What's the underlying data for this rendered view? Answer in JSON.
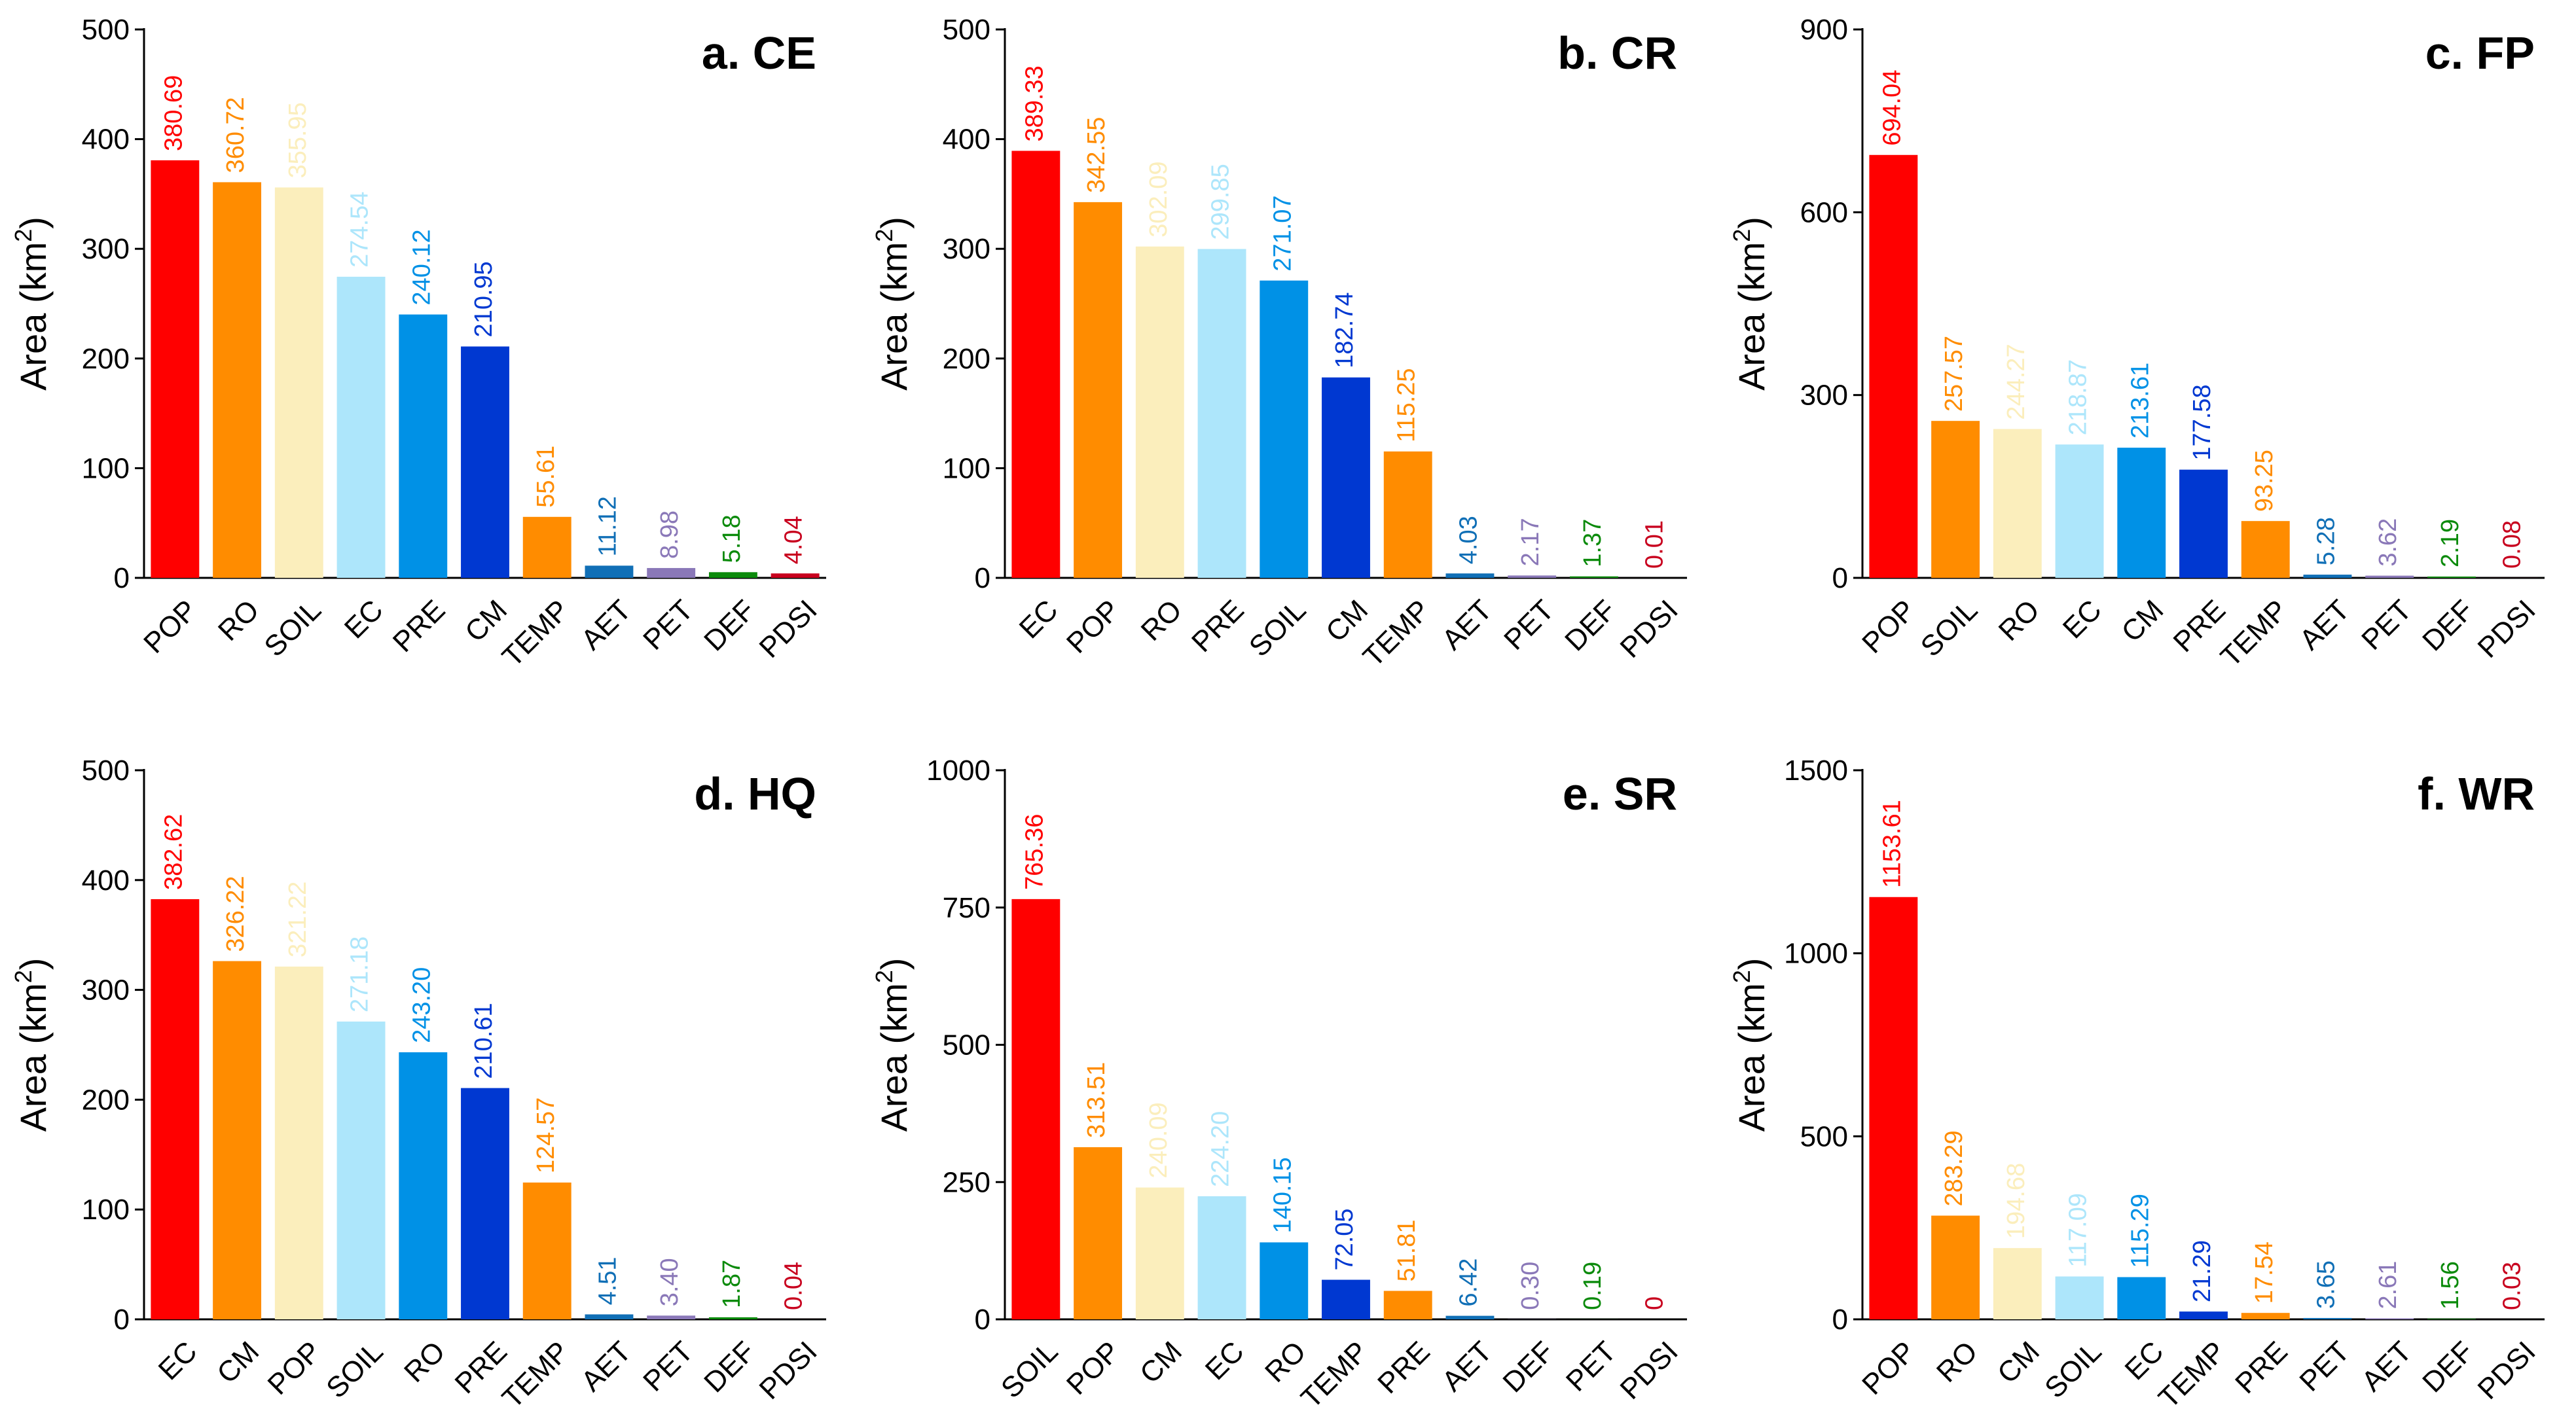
{
  "figure": {
    "background": "#ffffff"
  },
  "colors": {
    "red": "#ff0000",
    "orange": "#ff8c00",
    "pale_yellow": "#fbeebc",
    "light_blue": "#ade6fb",
    "blue": "#0091e6",
    "dark_blue": "#0038d1",
    "mid_blue": "#106fb6",
    "purple": "#8a78b8",
    "green": "#0b8a0b",
    "dark_red": "#c8001e"
  },
  "chart_data": [
    {
      "type": "bar",
      "title": "a. CE",
      "ylabel": "Area (km",
      "ylabel_sup": "2",
      "ylabel_close": ")",
      "ylim": [
        0,
        500
      ],
      "yticks": [
        0,
        100,
        200,
        300,
        400,
        500
      ],
      "ytick_labels": [
        "0",
        "100",
        "200",
        "300",
        "400",
        "500"
      ],
      "categories": [
        "POP",
        "RO",
        "SOIL",
        "EC",
        "PRE",
        "CM",
        "TEMP",
        "AET",
        "PET",
        "DEF",
        "PDSI"
      ],
      "values": [
        380.69,
        360.72,
        355.95,
        274.54,
        240.12,
        210.95,
        55.61,
        11.12,
        8.98,
        5.18,
        4.04
      ],
      "value_labels": [
        "380.69",
        "360.72",
        "355.95",
        "274.54",
        "240.12",
        "210.95",
        "55.61",
        "11.12",
        "8.98",
        "5.18",
        "4.04"
      ],
      "bar_colors": [
        "#ff0000",
        "#ff8c00",
        "#fbeebc",
        "#ade6fb",
        "#0091e6",
        "#0038d1",
        "#ff8c00",
        "#106fb6",
        "#8a78b8",
        "#0b8a0b",
        "#c8001e"
      ]
    },
    {
      "type": "bar",
      "title": "b. CR",
      "ylabel": "Area (km",
      "ylabel_sup": "2",
      "ylabel_close": ")",
      "ylim": [
        0,
        500
      ],
      "yticks": [
        0,
        100,
        200,
        300,
        400,
        500
      ],
      "ytick_labels": [
        "0",
        "100",
        "200",
        "300",
        "400",
        "500"
      ],
      "categories": [
        "EC",
        "POP",
        "RO",
        "PRE",
        "SOIL",
        "CM",
        "TEMP",
        "AET",
        "PET",
        "DEF",
        "PDSI"
      ],
      "values": [
        389.33,
        342.55,
        302.09,
        299.85,
        271.07,
        182.74,
        115.25,
        4.03,
        2.17,
        1.37,
        0.01
      ],
      "value_labels": [
        "389.33",
        "342.55",
        "302.09",
        "299.85",
        "271.07",
        "182.74",
        "115.25",
        "4.03",
        "2.17",
        "1.37",
        "0.01"
      ],
      "bar_colors": [
        "#ff0000",
        "#ff8c00",
        "#fbeebc",
        "#ade6fb",
        "#0091e6",
        "#0038d1",
        "#ff8c00",
        "#106fb6",
        "#8a78b8",
        "#0b8a0b",
        "#c8001e"
      ]
    },
    {
      "type": "bar",
      "title": "c. FP",
      "ylabel": "Area (km",
      "ylabel_sup": "2",
      "ylabel_close": ")",
      "ylim": [
        0,
        900
      ],
      "yticks": [
        0,
        300,
        600,
        900
      ],
      "ytick_labels": [
        "0",
        "300",
        "600",
        "900"
      ],
      "categories": [
        "POP",
        "SOIL",
        "RO",
        "EC",
        "CM",
        "PRE",
        "TEMP",
        "AET",
        "PET",
        "DEF",
        "PDSI"
      ],
      "values": [
        694.04,
        257.57,
        244.27,
        218.87,
        213.61,
        177.58,
        93.25,
        5.28,
        3.62,
        2.19,
        0.08
      ],
      "value_labels": [
        "694.04",
        "257.57",
        "244.27",
        "218.87",
        "213.61",
        "177.58",
        "93.25",
        "5.28",
        "3.62",
        "2.19",
        "0.08"
      ],
      "bar_colors": [
        "#ff0000",
        "#ff8c00",
        "#fbeebc",
        "#ade6fb",
        "#0091e6",
        "#0038d1",
        "#ff8c00",
        "#106fb6",
        "#8a78b8",
        "#0b8a0b",
        "#c8001e"
      ]
    },
    {
      "type": "bar",
      "title": "d. HQ",
      "ylabel": "Area (km",
      "ylabel_sup": "2",
      "ylabel_close": ")",
      "ylim": [
        0,
        500
      ],
      "yticks": [
        0,
        100,
        200,
        300,
        400,
        500
      ],
      "ytick_labels": [
        "0",
        "100",
        "200",
        "300",
        "400",
        "500"
      ],
      "categories": [
        "EC",
        "CM",
        "POP",
        "SOIL",
        "RO",
        "PRE",
        "TEMP",
        "AET",
        "PET",
        "DEF",
        "PDSI"
      ],
      "values": [
        382.62,
        326.22,
        321.22,
        271.18,
        243.2,
        210.61,
        124.57,
        4.51,
        3.4,
        1.87,
        0.04
      ],
      "value_labels": [
        "382.62",
        "326.22",
        "321.22",
        "271.18",
        "243.20",
        "210.61",
        "124.57",
        "4.51",
        "3.40",
        "1.87",
        "0.04"
      ],
      "bar_colors": [
        "#ff0000",
        "#ff8c00",
        "#fbeebc",
        "#ade6fb",
        "#0091e6",
        "#0038d1",
        "#ff8c00",
        "#106fb6",
        "#8a78b8",
        "#0b8a0b",
        "#c8001e"
      ]
    },
    {
      "type": "bar",
      "title": "e. SR",
      "ylabel": "Area (km",
      "ylabel_sup": "2",
      "ylabel_close": ")",
      "ylim": [
        0,
        1000
      ],
      "yticks": [
        0,
        250,
        500,
        750,
        1000
      ],
      "ytick_labels": [
        "0",
        "250",
        "500",
        "750",
        "1000"
      ],
      "categories": [
        "SOIL",
        "POP",
        "CM",
        "EC",
        "RO",
        "TEMP",
        "PRE",
        "AET",
        "DEF",
        "PET",
        "PDSI"
      ],
      "values": [
        765.36,
        313.51,
        240.09,
        224.2,
        140.15,
        72.05,
        51.81,
        6.42,
        0.3,
        0.19,
        0
      ],
      "value_labels": [
        "765.36",
        "313.51",
        "240.09",
        "224.20",
        "140.15",
        "72.05",
        "51.81",
        "6.42",
        "0.30",
        "0.19",
        "0"
      ],
      "bar_colors": [
        "#ff0000",
        "#ff8c00",
        "#fbeebc",
        "#ade6fb",
        "#0091e6",
        "#0038d1",
        "#ff8c00",
        "#106fb6",
        "#8a78b8",
        "#0b8a0b",
        "#c8001e"
      ]
    },
    {
      "type": "bar",
      "title": "f. WR",
      "ylabel": "Area (km",
      "ylabel_sup": "2",
      "ylabel_close": ")",
      "ylim": [
        0,
        1500
      ],
      "yticks": [
        0,
        500,
        1000,
        1500
      ],
      "ytick_labels": [
        "0",
        "500",
        "1000",
        "1500"
      ],
      "categories": [
        "POP",
        "RO",
        "CM",
        "SOIL",
        "EC",
        "TEMP",
        "PRE",
        "PET",
        "AET",
        "DEF",
        "PDSI"
      ],
      "values": [
        1153.61,
        283.29,
        194.68,
        117.09,
        115.29,
        21.29,
        17.54,
        3.65,
        2.61,
        1.56,
        0.03
      ],
      "value_labels": [
        "1153.61",
        "283.29",
        "194.68",
        "117.09",
        "115.29",
        "21.29",
        "17.54",
        "3.65",
        "2.61",
        "1.56",
        "0.03"
      ],
      "bar_colors": [
        "#ff0000",
        "#ff8c00",
        "#fbeebc",
        "#ade6fb",
        "#0091e6",
        "#0038d1",
        "#ff8c00",
        "#106fb6",
        "#8a78b8",
        "#0b8a0b",
        "#c8001e"
      ]
    }
  ]
}
